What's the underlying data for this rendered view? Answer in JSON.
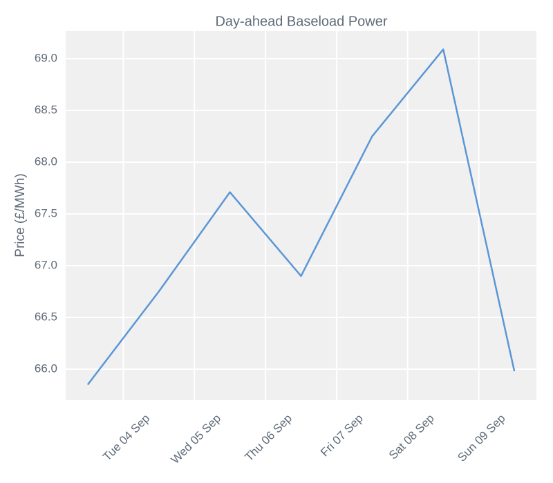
{
  "chart_data": {
    "type": "line",
    "title": "Day-ahead Baseload Power",
    "y_label": "Price (£/MWh)",
    "x": [
      3.5,
      4.5,
      5.5,
      6.5,
      7.5,
      8.5,
      9.5
    ],
    "series": [
      {
        "name": "Day-ahead Baseload",
        "color": "#5b96d6",
        "values": [
          65.85,
          66.75,
          67.71,
          66.9,
          68.25,
          69.09,
          65.98
        ]
      }
    ],
    "xlim": [
      3.19,
      9.81
    ],
    "xticks": [
      {
        "value": 4,
        "label": "Tue 04 Sep"
      },
      {
        "value": 5,
        "label": "Wed 05 Sep"
      },
      {
        "value": 6,
        "label": "Thu 06 Sep"
      },
      {
        "value": 7,
        "label": "Fri 07 Sep"
      },
      {
        "value": 8,
        "label": "Sat 08 Sep"
      },
      {
        "value": 9,
        "label": "Sun 09 Sep"
      }
    ],
    "ylim": [
      65.7,
      69.267
    ],
    "yticks": [
      {
        "value": 66,
        "label": "66.0"
      },
      {
        "value": 66.5,
        "label": "66.5"
      },
      {
        "value": 67,
        "label": "67.0"
      },
      {
        "value": 67.5,
        "label": "67.5"
      },
      {
        "value": 68,
        "label": "68.0"
      },
      {
        "value": 68.5,
        "label": "68.5"
      },
      {
        "value": 69,
        "label": "69.0"
      }
    ],
    "grid": true
  }
}
